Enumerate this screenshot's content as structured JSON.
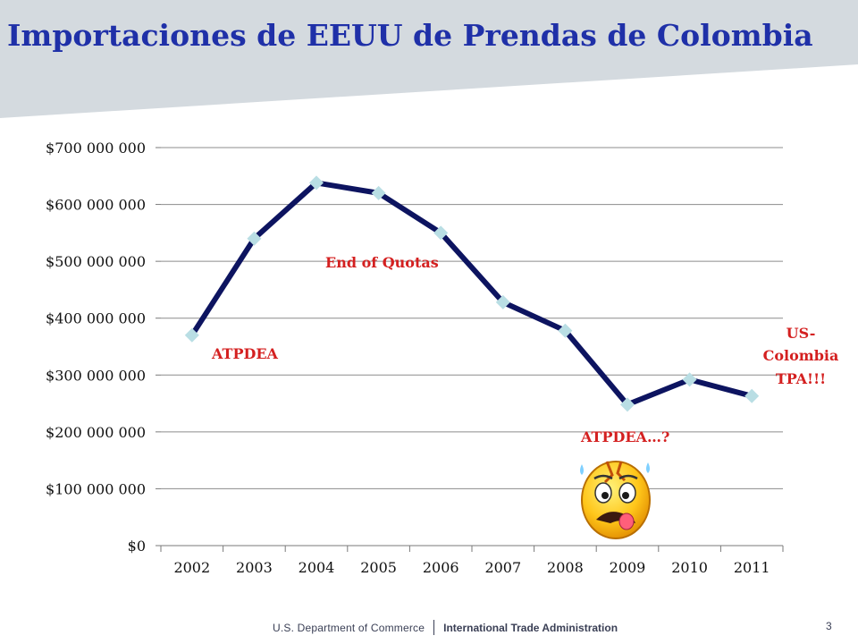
{
  "slide": {
    "title": "Importaciones de EEUU de Prendas de Colombia",
    "footer_department": "U.S. Department of Commerce",
    "footer_agency": "International Trade Administration",
    "page_number": "3"
  },
  "colors": {
    "title": "#1f30a8",
    "header_band": "#d4dadf",
    "line": "#0d1460",
    "marker": "#b9dee4",
    "annotation": "#d42020"
  },
  "chart_data": {
    "type": "line",
    "title": "",
    "xlabel": "",
    "ylabel": "",
    "categories": [
      "2002",
      "2003",
      "2004",
      "2005",
      "2006",
      "2007",
      "2008",
      "2009",
      "2010",
      "2011"
    ],
    "series": [
      {
        "values": [
          370000000,
          540000000,
          638000000,
          620000000,
          550000000,
          428000000,
          378000000,
          248000000,
          292000000,
          263000000
        ]
      }
    ],
    "ylim": [
      0,
      700000000
    ],
    "yticks": [
      "$0",
      "$100 000 000",
      "$200 000 000",
      "$300 000 000",
      "$400 000 000",
      "$500 000 000",
      "$600 000 000",
      "$700 000 000"
    ],
    "grid": true,
    "legend": "none",
    "annotations": [
      {
        "text": "ATPDEA",
        "near": "2002"
      },
      {
        "text": "End of Quotas",
        "near": "2004"
      },
      {
        "text": "ATPDEA…?",
        "near": "2009"
      },
      {
        "lines": [
          "US-",
          "Colombia",
          "TPA!!!"
        ],
        "near": "2011"
      }
    ],
    "decoration": "worried-face-emoji"
  }
}
